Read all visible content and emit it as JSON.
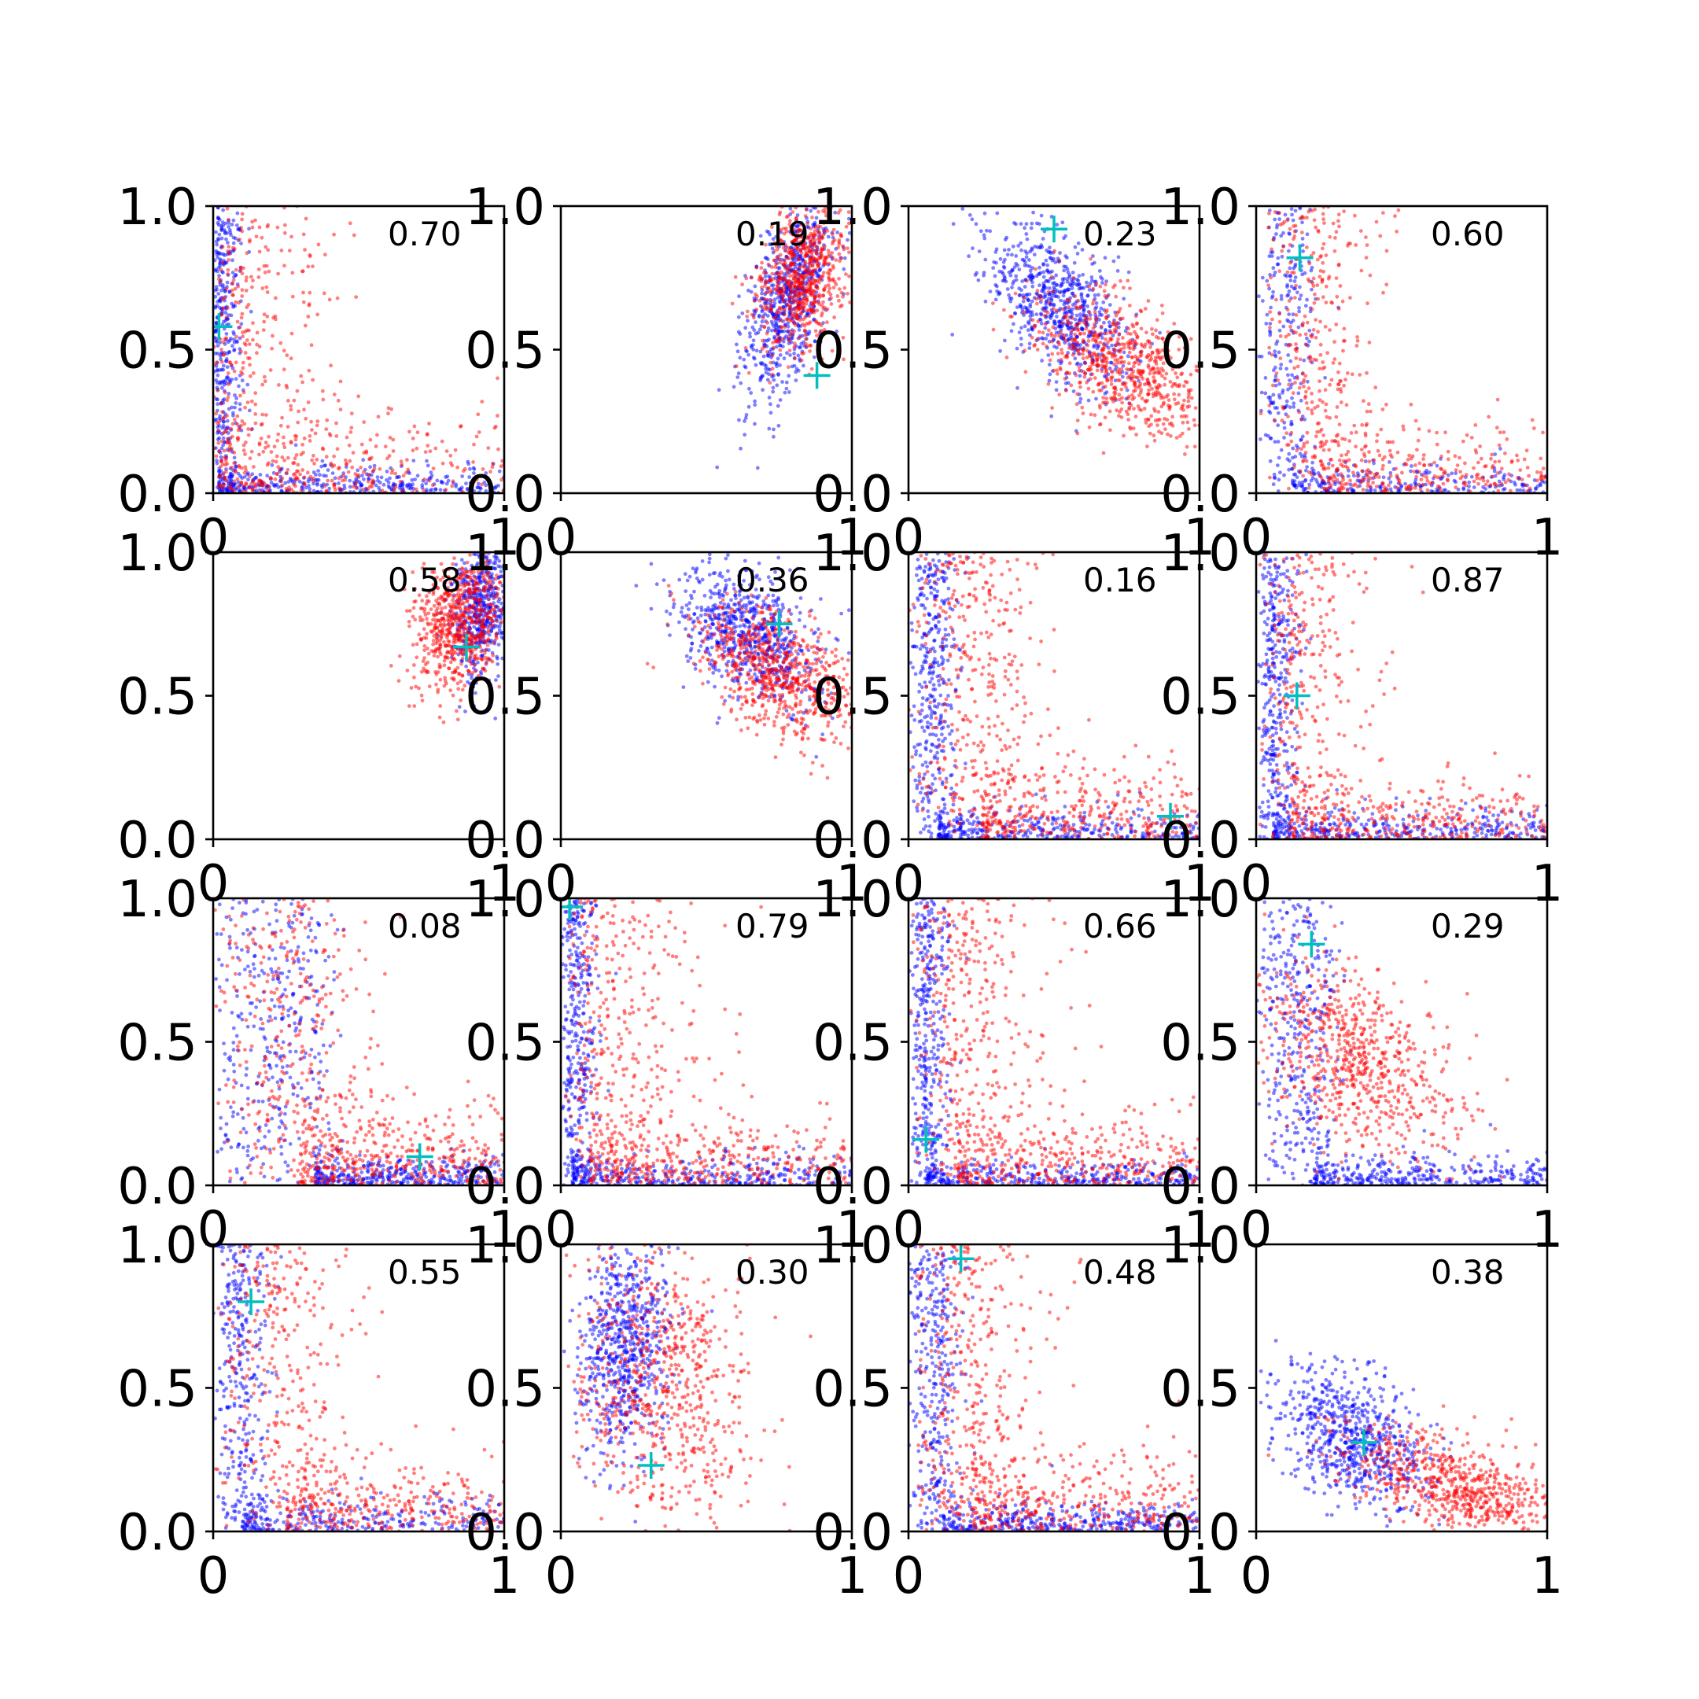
{
  "chart_data": {
    "type": "scatter",
    "layout": {
      "rows": 4,
      "cols": 4
    },
    "xlim": [
      0,
      1
    ],
    "ylim": [
      0,
      1
    ],
    "xticks": [
      "0",
      "1"
    ],
    "yticks": [
      "0.0",
      "0.5",
      "1.0"
    ],
    "series_colors": {
      "blue": "#0000ff",
      "red": "#ff0000",
      "marker": "#00bfbf"
    },
    "panels": [
      {
        "label": "0.70",
        "marker": [
          0.02,
          0.58
        ],
        "blue": {
          "shape": "L",
          "wx": 0.04,
          "wy": 0.04,
          "n": 700
        },
        "red": {
          "shape": "L",
          "wx": 0.2,
          "wy": 0.15,
          "n": 600
        }
      },
      {
        "label": "0.19",
        "marker": [
          0.88,
          0.41
        ],
        "blue": {
          "shape": "blob",
          "cx": 0.78,
          "cy": 0.68,
          "sx": 0.08,
          "sy": 0.18,
          "rho": 0.6,
          "n": 700
        },
        "red": {
          "shape": "blob",
          "cx": 0.83,
          "cy": 0.75,
          "sx": 0.08,
          "sy": 0.13,
          "rho": 0.3,
          "n": 700
        }
      },
      {
        "label": "0.23",
        "marker": [
          0.5,
          0.92
        ],
        "blue": {
          "shape": "blob",
          "cx": 0.52,
          "cy": 0.65,
          "sx": 0.12,
          "sy": 0.14,
          "rho": -0.5,
          "n": 700
        },
        "red": {
          "shape": "blob",
          "cx": 0.73,
          "cy": 0.45,
          "sx": 0.15,
          "sy": 0.13,
          "rho": -0.55,
          "n": 700
        }
      },
      {
        "label": "0.60",
        "marker": [
          0.15,
          0.82
        ],
        "blue": {
          "shape": "L",
          "wx": 0.06,
          "wy": 0.05,
          "cx": 0.12,
          "n": 500
        },
        "red": {
          "shape": "L",
          "wx": 0.12,
          "wy": 0.12,
          "cx": 0.22,
          "n": 600
        }
      },
      {
        "label": "0.58",
        "marker": [
          0.87,
          0.67
        ],
        "blue": {
          "shape": "blob",
          "cx": 0.92,
          "cy": 0.8,
          "sx": 0.05,
          "sy": 0.12,
          "rho": 0.2,
          "n": 500
        },
        "red": {
          "shape": "blob",
          "cx": 0.85,
          "cy": 0.75,
          "sx": 0.08,
          "sy": 0.12,
          "rho": 0.3,
          "n": 700
        }
      },
      {
        "label": "0.36",
        "marker": [
          0.75,
          0.75
        ],
        "blue": {
          "shape": "blob",
          "cx": 0.65,
          "cy": 0.72,
          "sx": 0.12,
          "sy": 0.12,
          "rho": -0.4,
          "n": 700
        },
        "red": {
          "shape": "blob",
          "cx": 0.75,
          "cy": 0.58,
          "sx": 0.14,
          "sy": 0.12,
          "rho": -0.5,
          "n": 700
        }
      },
      {
        "label": "0.16",
        "marker": [
          0.9,
          0.08
        ],
        "blue": {
          "shape": "L",
          "wx": 0.05,
          "wy": 0.05,
          "cx": 0.1,
          "n": 700
        },
        "red": {
          "shape": "L",
          "wx": 0.14,
          "wy": 0.14,
          "cx": 0.25,
          "n": 700
        }
      },
      {
        "label": "0.87",
        "marker": [
          0.14,
          0.5
        ],
        "blue": {
          "shape": "L",
          "wx": 0.05,
          "wy": 0.05,
          "cx": 0.06,
          "n": 700
        },
        "red": {
          "shape": "L",
          "wx": 0.16,
          "wy": 0.1,
          "cx": 0.12,
          "n": 600
        }
      },
      {
        "label": "0.08",
        "marker": [
          0.71,
          0.1
        ],
        "blue": {
          "shape": "L",
          "wx": 0.05,
          "wy": 0.05,
          "cx": 0.35,
          "n": 700
        },
        "red": {
          "shape": "L",
          "wx": 0.16,
          "wy": 0.14,
          "cx": 0.3,
          "n": 700
        }
      },
      {
        "label": "0.79",
        "marker": [
          0.03,
          0.97
        ],
        "blue": {
          "shape": "L",
          "wx": 0.05,
          "wy": 0.05,
          "cx": 0.04,
          "n": 700
        },
        "red": {
          "shape": "L",
          "wx": 0.2,
          "wy": 0.12,
          "cx": 0.1,
          "n": 700
        }
      },
      {
        "label": "0.66",
        "marker": [
          0.06,
          0.16
        ],
        "blue": {
          "shape": "L",
          "wx": 0.05,
          "wy": 0.04,
          "cx": 0.06,
          "n": 700
        },
        "red": {
          "shape": "L",
          "wx": 0.2,
          "wy": 0.12,
          "cx": 0.16,
          "n": 700
        }
      },
      {
        "label": "0.29",
        "marker": [
          0.19,
          0.84
        ],
        "blue": {
          "shape": "L",
          "wx": 0.06,
          "wy": 0.05,
          "cx": 0.2,
          "n": 700
        },
        "red": {
          "shape": "blob",
          "cx": 0.35,
          "cy": 0.42,
          "sx": 0.18,
          "sy": 0.18,
          "rho": -0.5,
          "n": 700
        }
      },
      {
        "label": "0.55",
        "marker": [
          0.13,
          0.8
        ],
        "blue": {
          "shape": "L",
          "wx": 0.06,
          "wy": 0.06,
          "cx": 0.1,
          "n": 600
        },
        "red": {
          "shape": "L",
          "wx": 0.14,
          "wy": 0.12,
          "cx": 0.25,
          "n": 600
        }
      },
      {
        "label": "0.30",
        "marker": [
          0.31,
          0.23
        ],
        "blue": {
          "shape": "blob",
          "cx": 0.22,
          "cy": 0.65,
          "sx": 0.08,
          "sy": 0.2,
          "rho": 0.2,
          "n": 700
        },
        "red": {
          "shape": "blob",
          "cx": 0.35,
          "cy": 0.5,
          "sx": 0.16,
          "sy": 0.25,
          "rho": -0.2,
          "n": 700
        }
      },
      {
        "label": "0.48",
        "marker": [
          0.18,
          0.95
        ],
        "blue": {
          "shape": "L",
          "wx": 0.05,
          "wy": 0.05,
          "cx": 0.12,
          "n": 700
        },
        "red": {
          "shape": "L",
          "wx": 0.14,
          "wy": 0.14,
          "cx": 0.22,
          "n": 700
        }
      },
      {
        "label": "0.38",
        "marker": [
          0.37,
          0.31
        ],
        "blue": {
          "shape": "blob",
          "cx": 0.33,
          "cy": 0.33,
          "sx": 0.13,
          "sy": 0.12,
          "rho": -0.4,
          "n": 700
        },
        "red": {
          "shape": "blob",
          "cx": 0.7,
          "cy": 0.15,
          "sx": 0.2,
          "sy": 0.1,
          "rho": -0.6,
          "n": 700
        }
      }
    ]
  }
}
